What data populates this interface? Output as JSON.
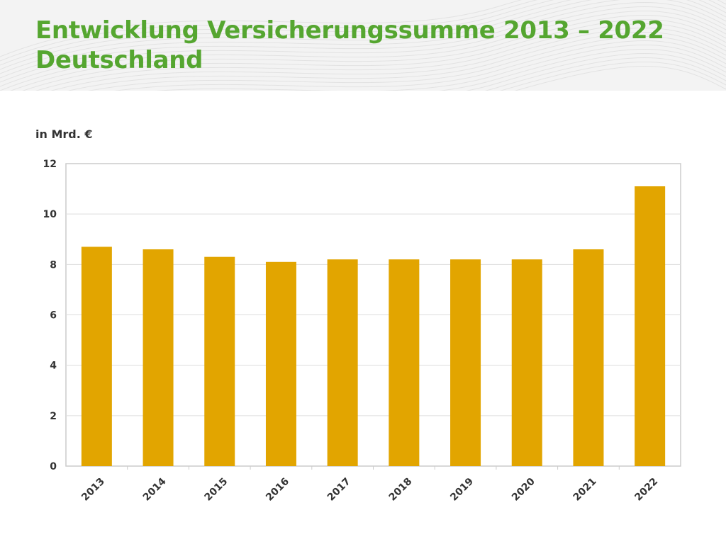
{
  "title_lines": [
    "Entwicklung Versicherungssumme 2013 – 2022",
    "Deutschland"
  ],
  "colors": {
    "title": "#55a630",
    "bar": "#e2a500",
    "grid": "#dddddd"
  },
  "chart_data": {
    "type": "bar",
    "title": "Entwicklung Versicherungssumme 2013 – 2022 Deutschland",
    "ylabel": "in Mrd. €",
    "categories": [
      "2013",
      "2014",
      "2015",
      "2016",
      "2017",
      "2018",
      "2019",
      "2020",
      "2021",
      "2022"
    ],
    "values": [
      8.7,
      8.6,
      8.3,
      8.1,
      8.2,
      8.2,
      8.2,
      8.2,
      8.6,
      11.1
    ],
    "ylim": [
      0,
      12
    ],
    "yticks": [
      "0",
      "2",
      "4",
      "6",
      "8",
      "10",
      "12"
    ],
    "grid": true,
    "legend": "none"
  }
}
